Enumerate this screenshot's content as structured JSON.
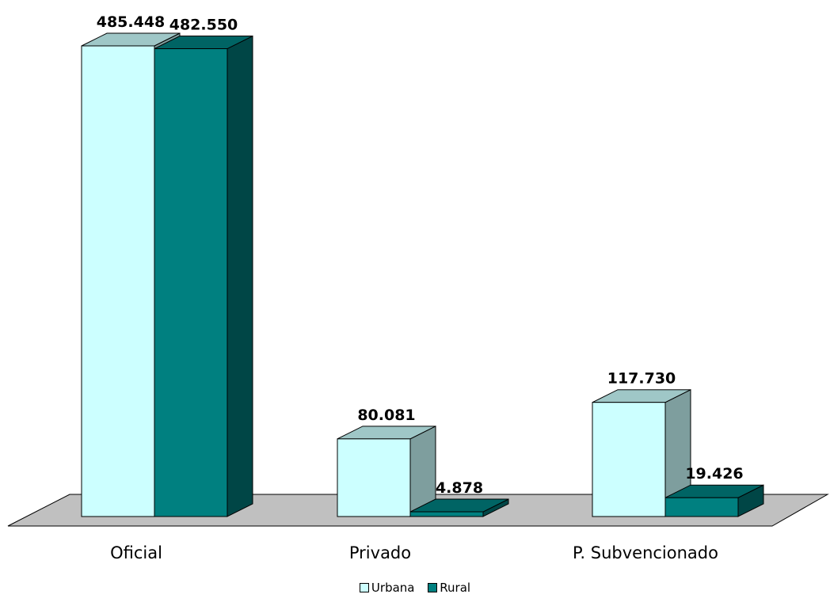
{
  "chart_data": {
    "type": "bar",
    "style": "3d-clustered-column",
    "title": "",
    "xlabel": "",
    "ylabel": "",
    "categories": [
      "Oficial",
      "Privado",
      "P. Subvencionado"
    ],
    "series": [
      {
        "name": "Urbana",
        "values": [
          485448,
          80081,
          117730
        ],
        "labels": [
          "485.448",
          "80.081",
          "117.730"
        ],
        "color": "#ccffff"
      },
      {
        "name": "Rural",
        "values": [
          482550,
          4878,
          19426
        ],
        "labels": [
          "482.550",
          "4.878",
          "19.426"
        ],
        "color": "#008080"
      }
    ],
    "ylim": [
      0,
      485448
    ],
    "grid": false,
    "floor_color": "#c0c0c0",
    "legend_position": "bottom"
  }
}
